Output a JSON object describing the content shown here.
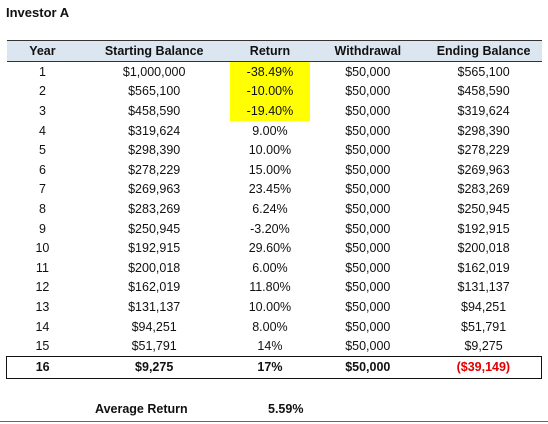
{
  "title": "Investor A",
  "headers": [
    "Year",
    "Starting Balance",
    "Return",
    "Withdrawal",
    "Ending Balance"
  ],
  "rows": [
    {
      "year": "1",
      "start": "$1,000,000",
      "ret": "-38.49%",
      "wd": "$50,000",
      "end": "$565,100",
      "highlight": true
    },
    {
      "year": "2",
      "start": "$565,100",
      "ret": "-10.00%",
      "wd": "$50,000",
      "end": "$458,590",
      "highlight": true
    },
    {
      "year": "3",
      "start": "$458,590",
      "ret": "-19.40%",
      "wd": "$50,000",
      "end": "$319,624",
      "highlight": true
    },
    {
      "year": "4",
      "start": "$319,624",
      "ret": "9.00%",
      "wd": "$50,000",
      "end": "$298,390",
      "highlight": false
    },
    {
      "year": "5",
      "start": "$298,390",
      "ret": "10.00%",
      "wd": "$50,000",
      "end": "$278,229",
      "highlight": false
    },
    {
      "year": "6",
      "start": "$278,229",
      "ret": "15.00%",
      "wd": "$50,000",
      "end": "$269,963",
      "highlight": false
    },
    {
      "year": "7",
      "start": "$269,963",
      "ret": "23.45%",
      "wd": "$50,000",
      "end": "$283,269",
      "highlight": false
    },
    {
      "year": "8",
      "start": "$283,269",
      "ret": "6.24%",
      "wd": "$50,000",
      "end": "$250,945",
      "highlight": false
    },
    {
      "year": "9",
      "start": "$250,945",
      "ret": "-3.20%",
      "wd": "$50,000",
      "end": "$192,915",
      "highlight": false
    },
    {
      "year": "10",
      "start": "$192,915",
      "ret": "29.60%",
      "wd": "$50,000",
      "end": "$200,018",
      "highlight": false
    },
    {
      "year": "11",
      "start": "$200,018",
      "ret": "6.00%",
      "wd": "$50,000",
      "end": "$162,019",
      "highlight": false
    },
    {
      "year": "12",
      "start": "$162,019",
      "ret": "11.80%",
      "wd": "$50,000",
      "end": "$131,137",
      "highlight": false
    },
    {
      "year": "13",
      "start": "$131,137",
      "ret": "10.00%",
      "wd": "$50,000",
      "end": "$94,251",
      "highlight": false
    },
    {
      "year": "14",
      "start": "$94,251",
      "ret": "8.00%",
      "wd": "$50,000",
      "end": "$51,791",
      "highlight": false
    },
    {
      "year": "15",
      "start": "$51,791",
      "ret": "14%",
      "wd": "$50,000",
      "end": "$9,275",
      "highlight": false
    }
  ],
  "total_row": {
    "year": "16",
    "start": "$9,275",
    "ret": "17%",
    "wd": "$50,000",
    "end": "($39,149)"
  },
  "average": {
    "label": "Average Return",
    "value": "5.59%"
  },
  "colors": {
    "header_bg": "#dce6f1",
    "highlight": "#ffff00",
    "negative": "#e00000"
  }
}
